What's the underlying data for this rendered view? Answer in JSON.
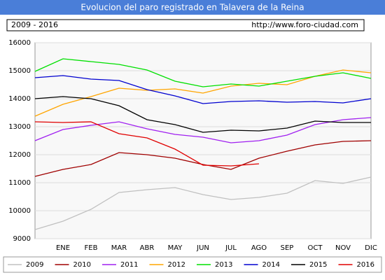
{
  "chart_data": {
    "type": "line",
    "title": "Evolucion del paro registrado en Talavera de la Reina",
    "period": "2009 - 2016",
    "source": "http://www.foro-ciudad.com",
    "categories": [
      null,
      "ENE",
      "FEB",
      "MAR",
      "ABR",
      "MAY",
      "JUN",
      "JUL",
      "AGO",
      "SEP",
      "OCT",
      "NOV",
      "DIC"
    ],
    "series": [
      {
        "name": "2009",
        "color": "#c0c0c0",
        "values": [
          9325,
          9625,
          10050,
          10650,
          10750,
          10825,
          10575,
          10400,
          10475,
          10625,
          11075,
          10975,
          11200
        ]
      },
      {
        "name": "2010",
        "color": "#a00000",
        "values": [
          11225,
          11475,
          11650,
          12075,
          12000,
          11875,
          11650,
          11475,
          11875,
          12125,
          12350,
          12475,
          12500
        ]
      },
      {
        "name": "2011",
        "color": "#a020f0",
        "values": [
          12500,
          12900,
          13050,
          13175,
          12925,
          12725,
          12625,
          12425,
          12500,
          12700,
          13075,
          13250,
          13325
        ]
      },
      {
        "name": "2012",
        "color": "#ffa500",
        "values": [
          13375,
          13800,
          14075,
          14375,
          14300,
          14350,
          14200,
          14450,
          14550,
          14500,
          14800,
          15025,
          14925
        ]
      },
      {
        "name": "2013",
        "color": "#00e000",
        "values": [
          14975,
          15425,
          15325,
          15225,
          15025,
          14625,
          14425,
          14525,
          14450,
          14625,
          14800,
          14925,
          14725
        ]
      },
      {
        "name": "2014",
        "color": "#0000d0",
        "values": [
          14750,
          14825,
          14700,
          14650,
          14325,
          14100,
          13825,
          13900,
          13925,
          13875,
          13900,
          13850,
          14000
        ]
      },
      {
        "name": "2015",
        "color": "#000000",
        "values": [
          14000,
          14075,
          14000,
          13750,
          13250,
          13075,
          12800,
          12875,
          12850,
          12950,
          13200,
          13150,
          13150
        ]
      },
      {
        "name": "2016",
        "color": "#e00000",
        "values": [
          13175,
          13150,
          13175,
          12750,
          12600,
          12200,
          11625,
          11600,
          11675,
          null,
          null,
          null,
          null
        ]
      }
    ],
    "ylim": [
      9000,
      16000
    ],
    "yticks": [
      9000,
      10000,
      11000,
      12000,
      13000,
      14000,
      15000,
      16000
    ],
    "grid": true
  }
}
